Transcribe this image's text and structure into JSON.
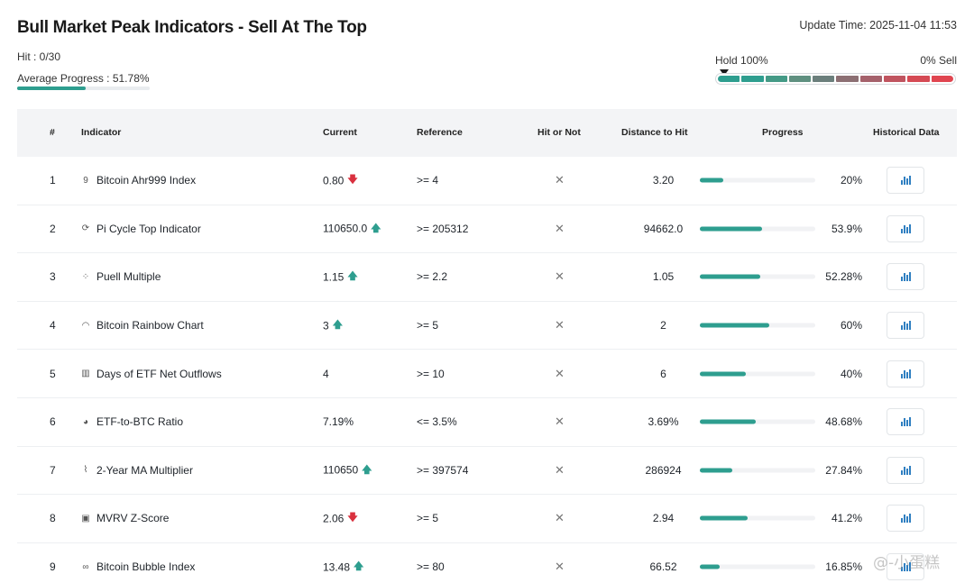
{
  "page": {
    "title": "Bull Market Peak Indicators - Sell At The Top",
    "update_time": "Update Time: 2025-11-04 11:53",
    "hit": "Hit : 0/30",
    "average_progress": "Average Progress : 51.78%",
    "average_progress_value": 0.5178
  },
  "meter": {
    "left_label": "Hold 100%",
    "right_label": "0% Sell",
    "segment_colors": [
      "#2e9e8f",
      "#2e9e8f",
      "#449a86",
      "#5f9080",
      "#6b7f7c",
      "#8c6f73",
      "#a5616b",
      "#c0545f",
      "#d54a54",
      "#e04550"
    ]
  },
  "columns": [
    "#",
    "Indicator",
    "Current",
    "Reference",
    "Hit or Not",
    "Distance to Hit",
    "Progress",
    "Historical Data"
  ],
  "rows": [
    {
      "num": "1",
      "icon": "ahr999-icon",
      "icon_glyph": "9",
      "name": "Bitcoin Ahr999 Index",
      "current": "0.80",
      "trend": "down",
      "reference": ">= 4",
      "hit": "✕",
      "distance": "3.20",
      "progress": 0.2,
      "progress_text": "20%"
    },
    {
      "num": "2",
      "icon": "cycle-icon",
      "icon_glyph": "⟳",
      "name": "Pi Cycle Top Indicator",
      "current": "110650.0",
      "trend": "up",
      "reference": ">= 205312",
      "hit": "✕",
      "distance": "94662.0",
      "progress": 0.539,
      "progress_text": "53.9%"
    },
    {
      "num": "3",
      "icon": "scatter-icon",
      "icon_glyph": "⁘",
      "name": "Puell Multiple",
      "current": "1.15",
      "trend": "up",
      "reference": ">= 2.2",
      "hit": "✕",
      "distance": "1.05",
      "progress": 0.5228,
      "progress_text": "52.28%"
    },
    {
      "num": "4",
      "icon": "rainbow-icon",
      "icon_glyph": "◠",
      "name": "Bitcoin Rainbow Chart",
      "current": "3",
      "trend": "up",
      "reference": ">= 5",
      "hit": "✕",
      "distance": "2",
      "progress": 0.6,
      "progress_text": "60%"
    },
    {
      "num": "5",
      "icon": "bar-chart-icon",
      "icon_glyph": "▥",
      "name": "Days of ETF Net Outflows",
      "current": "4",
      "trend": "",
      "reference": ">= 10",
      "hit": "✕",
      "distance": "6",
      "progress": 0.4,
      "progress_text": "40%"
    },
    {
      "num": "6",
      "icon": "pie-chart-icon",
      "icon_glyph": "◕",
      "name": "ETF-to-BTC Ratio",
      "current": "7.19%",
      "trend": "",
      "reference": "<= 3.5%",
      "hit": "✕",
      "distance": "3.69%",
      "progress": 0.4868,
      "progress_text": "48.68%"
    },
    {
      "num": "7",
      "icon": "line-chart-icon",
      "icon_glyph": "⌇",
      "name": "2-Year MA Multiplier",
      "current": "110650",
      "trend": "up",
      "reference": ">= 397574",
      "hit": "✕",
      "distance": "286924",
      "progress": 0.2784,
      "progress_text": "27.84%"
    },
    {
      "num": "8",
      "icon": "calculator-icon",
      "icon_glyph": "▣",
      "name": "MVRV Z-Score",
      "current": "2.06",
      "trend": "down",
      "reference": ">= 5",
      "hit": "✕",
      "distance": "2.94",
      "progress": 0.412,
      "progress_text": "41.2%"
    },
    {
      "num": "9",
      "icon": "bubble-icon",
      "icon_glyph": "∞",
      "name": "Bitcoin Bubble Index",
      "current": "13.48",
      "trend": "up",
      "reference": ">= 80",
      "hit": "✕",
      "distance": "66.52",
      "progress": 0.1685,
      "progress_text": "16.85%"
    }
  ],
  "watermark": "@-小蛋糕",
  "colors": {
    "accent": "#2e9e8f",
    "down": "#d9303e",
    "chart_icon": "#2f7fc1"
  }
}
